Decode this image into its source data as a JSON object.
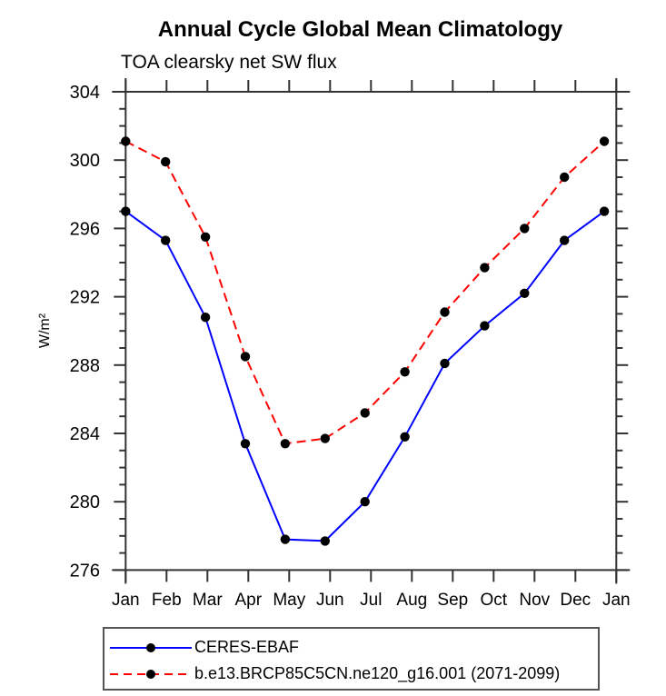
{
  "chart_data": {
    "type": "line",
    "title": "Annual Cycle Global Mean Climatology",
    "subtitle": "TOA clearsky net SW flux",
    "ylabel": "W/m²",
    "xlabel": "",
    "categories": [
      "Jan",
      "Feb",
      "Mar",
      "Apr",
      "May",
      "Jun",
      "Jul",
      "Aug",
      "Sep",
      "Oct",
      "Nov",
      "Dec",
      "Jan"
    ],
    "ylim": [
      276,
      304
    ],
    "ytick_major_step": 4,
    "ytick_minor_step": 1,
    "grid": false,
    "axis_color": "#333333",
    "tick_label_color": "#000000",
    "legend_position": "bottom-left-box",
    "series": [
      {
        "name": "CERES-EBAF",
        "color": "#0000ff",
        "style": "solid",
        "marker": "circle",
        "marker_color": "#000000",
        "values": [
          297.0,
          295.3,
          290.8,
          283.4,
          277.8,
          277.7,
          280.0,
          283.8,
          288.1,
          290.3,
          292.2,
          295.3,
          297.0
        ]
      },
      {
        "name": "b.e13.BRCP85C5CN.ne120_g16.001 (2071-2099)",
        "color": "#ff0000",
        "style": "dashed",
        "dash": "10 6",
        "marker": "circle",
        "marker_color": "#000000",
        "values": [
          301.1,
          299.9,
          295.5,
          288.5,
          283.4,
          283.7,
          285.2,
          287.6,
          291.1,
          293.7,
          296.0,
          299.0,
          301.1
        ]
      }
    ]
  }
}
